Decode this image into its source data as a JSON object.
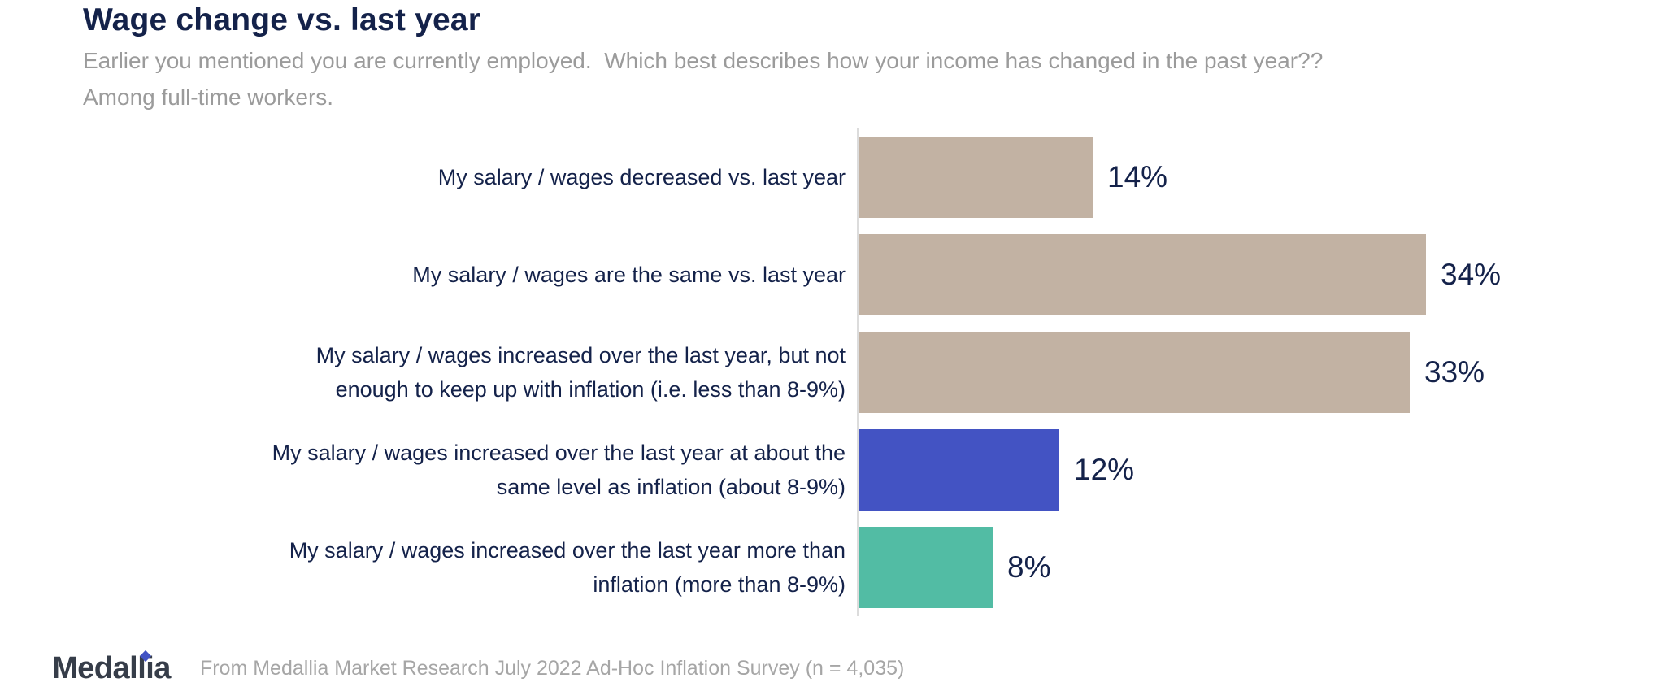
{
  "header": {
    "title": "Wage change vs. last year",
    "subtitle": "Earlier you mentioned you are currently employed.  Which best describes how your income has changed in the past year??\nAmong full-time workers."
  },
  "chart_data": {
    "type": "bar",
    "orientation": "horizontal",
    "title": "Wage change vs. last year",
    "categories": [
      "My salary / wages decreased vs. last year",
      "My salary / wages are the same vs. last year",
      "My salary / wages increased over the last year, but not\nenough to keep up with inflation (i.e. less than 8-9%)",
      "My salary / wages increased over the last year at about the\nsame level as inflation (about 8-9%)",
      "My salary / wages increased over the last year more than\ninflation (more than 8-9%)"
    ],
    "values": [
      14,
      34,
      33,
      12,
      8
    ],
    "value_labels": [
      "14%",
      "34%",
      "33%",
      "12%",
      "8%"
    ],
    "bar_colors": [
      "#c2b2a3",
      "#c2b2a3",
      "#c2b2a3",
      "#4353c3",
      "#52bca4"
    ],
    "xlim": [
      0,
      40
    ],
    "grid": false,
    "legend": "none",
    "value_label_position": "right-of-bar",
    "unit": "percent"
  },
  "colors": {
    "bar_neutral": "#c2b2a3",
    "bar_blue": "#4353c3",
    "bar_teal": "#52bca4",
    "text_navy": "#14224a",
    "subtitle_gray": "#9b9b9b",
    "axis_gray": "#dcdcdc",
    "logo_dark": "#363d49",
    "logo_diamond": "#4253c4",
    "source_gray": "#a6a6a6"
  },
  "footer": {
    "logo_text": "Medallia",
    "source": "From Medallia Market Research July 2022 Ad-Hoc Inflation Survey (n = 4,035)"
  }
}
